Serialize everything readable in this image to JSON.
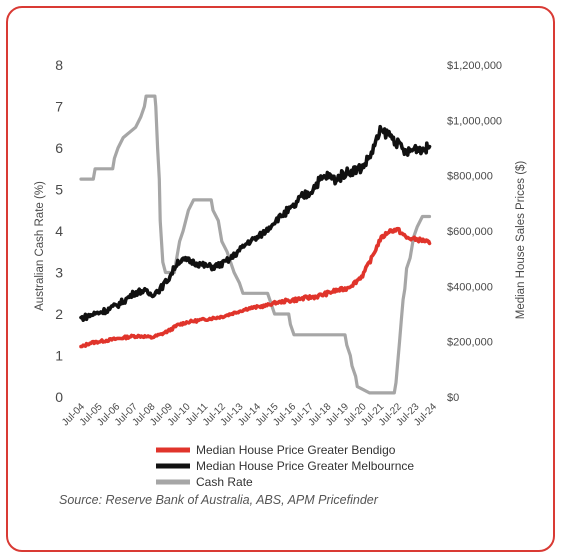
{
  "chart_data": {
    "type": "line",
    "y_left_label": "Australian Cash Rate (%)",
    "y_right_label": "Median House Sales Prices ($)",
    "y_left_ticks": [
      "0",
      "1",
      "2",
      "3",
      "4",
      "5",
      "6",
      "7",
      "8"
    ],
    "y_left_range": [
      0,
      8
    ],
    "y_right_ticks": [
      "$0",
      "$200,000",
      "$400,000",
      "$600,000",
      "$800,000",
      "$1,000,000",
      "$1,200,000"
    ],
    "y_right_range": [
      0,
      1200000
    ],
    "x_ticks": [
      "Jul-04",
      "Jul-05",
      "Jul-06",
      "Jul-07",
      "Jul-08",
      "Jul-09",
      "Jul-10",
      "Jul-11",
      "Jul-12",
      "Jul-13",
      "Jul-14",
      "Jul-15",
      "Jul-16",
      "Jul-17",
      "Jul-18",
      "Jul-19",
      "Jul-20",
      "Jul-21",
      "Jul-22",
      "Jul-23",
      "Jul-24"
    ],
    "x_range": [
      2004.5,
      2024.5
    ],
    "grid": false,
    "legend_position": "bottom",
    "series": [
      {
        "name": "Median House Price Greater Bendigo",
        "axis": "right",
        "color": "#e0342b",
        "points": [
          [
            2004.5,
            180000
          ],
          [
            2005.0,
            195000
          ],
          [
            2005.5,
            200000
          ],
          [
            2006.0,
            205000
          ],
          [
            2006.5,
            210000
          ],
          [
            2007.0,
            215000
          ],
          [
            2007.5,
            220000
          ],
          [
            2008.0,
            220000
          ],
          [
            2008.5,
            215000
          ],
          [
            2009.0,
            225000
          ],
          [
            2009.5,
            240000
          ],
          [
            2010.0,
            260000
          ],
          [
            2010.5,
            270000
          ],
          [
            2011.0,
            275000
          ],
          [
            2011.5,
            280000
          ],
          [
            2012.0,
            285000
          ],
          [
            2012.5,
            290000
          ],
          [
            2013.0,
            300000
          ],
          [
            2013.5,
            310000
          ],
          [
            2014.0,
            320000
          ],
          [
            2014.5,
            325000
          ],
          [
            2015.0,
            330000
          ],
          [
            2015.5,
            340000
          ],
          [
            2016.0,
            345000
          ],
          [
            2016.5,
            350000
          ],
          [
            2017.0,
            355000
          ],
          [
            2017.5,
            360000
          ],
          [
            2018.0,
            365000
          ],
          [
            2018.5,
            375000
          ],
          [
            2019.0,
            385000
          ],
          [
            2019.5,
            390000
          ],
          [
            2020.0,
            410000
          ],
          [
            2020.5,
            440000
          ],
          [
            2021.0,
            500000
          ],
          [
            2021.5,
            570000
          ],
          [
            2022.0,
            600000
          ],
          [
            2022.5,
            605000
          ],
          [
            2023.0,
            575000
          ],
          [
            2023.5,
            570000
          ],
          [
            2024.0,
            565000
          ],
          [
            2024.3,
            555000
          ]
        ]
      },
      {
        "name": "Median House Price Greater Melbournce",
        "axis": "right",
        "color": "#111111",
        "points": [
          [
            2004.5,
            285000
          ],
          [
            2005.0,
            295000
          ],
          [
            2005.5,
            305000
          ],
          [
            2006.0,
            315000
          ],
          [
            2006.5,
            330000
          ],
          [
            2007.0,
            350000
          ],
          [
            2007.5,
            375000
          ],
          [
            2008.0,
            385000
          ],
          [
            2008.5,
            370000
          ],
          [
            2009.0,
            390000
          ],
          [
            2009.5,
            430000
          ],
          [
            2010.0,
            490000
          ],
          [
            2010.5,
            495000
          ],
          [
            2011.0,
            485000
          ],
          [
            2011.5,
            475000
          ],
          [
            2012.0,
            470000
          ],
          [
            2012.5,
            480000
          ],
          [
            2013.0,
            500000
          ],
          [
            2013.5,
            530000
          ],
          [
            2014.0,
            560000
          ],
          [
            2014.5,
            575000
          ],
          [
            2015.0,
            600000
          ],
          [
            2015.5,
            635000
          ],
          [
            2016.0,
            660000
          ],
          [
            2016.5,
            680000
          ],
          [
            2017.0,
            720000
          ],
          [
            2017.5,
            740000
          ],
          [
            2018.0,
            780000
          ],
          [
            2018.5,
            800000
          ],
          [
            2019.0,
            785000
          ],
          [
            2019.5,
            810000
          ],
          [
            2020.0,
            820000
          ],
          [
            2020.5,
            830000
          ],
          [
            2021.0,
            880000
          ],
          [
            2021.5,
            960000
          ],
          [
            2022.0,
            950000
          ],
          [
            2022.5,
            915000
          ],
          [
            2023.0,
            880000
          ],
          [
            2023.5,
            900000
          ],
          [
            2024.0,
            895000
          ],
          [
            2024.3,
            905000
          ]
        ]
      },
      {
        "name": "Cash Rate",
        "axis": "left",
        "color": "#a6a6a6",
        "points": [
          [
            2004.5,
            5.25
          ],
          [
            2005.2,
            5.25
          ],
          [
            2005.3,
            5.5
          ],
          [
            2006.3,
            5.5
          ],
          [
            2006.4,
            5.75
          ],
          [
            2006.6,
            6.0
          ],
          [
            2006.9,
            6.25
          ],
          [
            2007.6,
            6.5
          ],
          [
            2007.9,
            6.75
          ],
          [
            2008.1,
            7.0
          ],
          [
            2008.2,
            7.25
          ],
          [
            2008.7,
            7.25
          ],
          [
            2008.75,
            7.0
          ],
          [
            2008.85,
            6.0
          ],
          [
            2008.95,
            5.25
          ],
          [
            2009.0,
            4.25
          ],
          [
            2009.15,
            3.25
          ],
          [
            2009.3,
            3.0
          ],
          [
            2009.8,
            3.0
          ],
          [
            2009.9,
            3.25
          ],
          [
            2010.0,
            3.5
          ],
          [
            2010.1,
            3.75
          ],
          [
            2010.3,
            4.0
          ],
          [
            2010.6,
            4.5
          ],
          [
            2010.9,
            4.75
          ],
          [
            2011.9,
            4.75
          ],
          [
            2012.0,
            4.5
          ],
          [
            2012.3,
            4.25
          ],
          [
            2012.5,
            3.75
          ],
          [
            2012.8,
            3.5
          ],
          [
            2013.0,
            3.25
          ],
          [
            2013.2,
            3.0
          ],
          [
            2013.5,
            2.75
          ],
          [
            2013.7,
            2.5
          ],
          [
            2015.1,
            2.5
          ],
          [
            2015.3,
            2.25
          ],
          [
            2015.5,
            2.0
          ],
          [
            2016.3,
            2.0
          ],
          [
            2016.4,
            1.75
          ],
          [
            2016.6,
            1.5
          ],
          [
            2019.5,
            1.5
          ],
          [
            2019.6,
            1.25
          ],
          [
            2019.8,
            1.0
          ],
          [
            2019.9,
            0.75
          ],
          [
            2020.1,
            0.5
          ],
          [
            2020.2,
            0.25
          ],
          [
            2020.9,
            0.1
          ],
          [
            2022.3,
            0.1
          ],
          [
            2022.4,
            0.35
          ],
          [
            2022.5,
            0.85
          ],
          [
            2022.6,
            1.35
          ],
          [
            2022.7,
            1.85
          ],
          [
            2022.8,
            2.35
          ],
          [
            2022.9,
            2.6
          ],
          [
            2023.0,
            3.1
          ],
          [
            2023.2,
            3.35
          ],
          [
            2023.4,
            3.85
          ],
          [
            2023.6,
            4.1
          ],
          [
            2023.9,
            4.35
          ],
          [
            2024.3,
            4.35
          ]
        ]
      }
    ]
  },
  "source_text": "Source: Reserve Bank of Australia, ABS, APM Pricefinder"
}
